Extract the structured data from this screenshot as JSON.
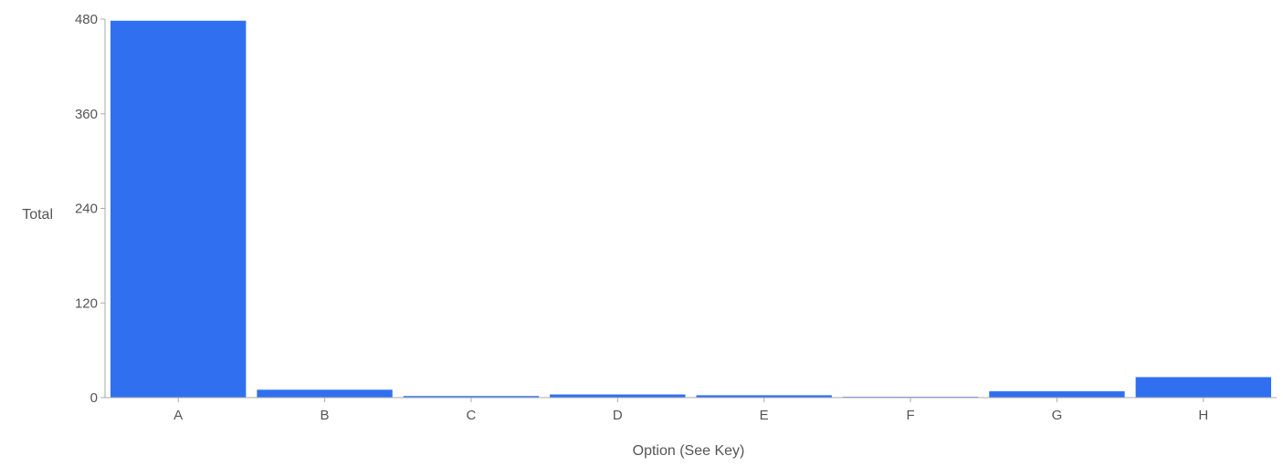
{
  "chart_data": {
    "type": "bar",
    "title": "",
    "xlabel": "Option (See Key)",
    "ylabel": "Total",
    "categories": [
      "A",
      "B",
      "C",
      "D",
      "E",
      "F",
      "G",
      "H"
    ],
    "values": [
      478,
      10,
      2,
      4,
      3,
      1,
      8,
      26
    ],
    "ylim": [
      0,
      480
    ],
    "yticks": [
      0,
      120,
      240,
      360,
      480
    ],
    "grid": false,
    "legend": "none",
    "colors": {
      "bar": "#3070f0",
      "axis": "#aaaaaa",
      "text": "#555555"
    }
  }
}
